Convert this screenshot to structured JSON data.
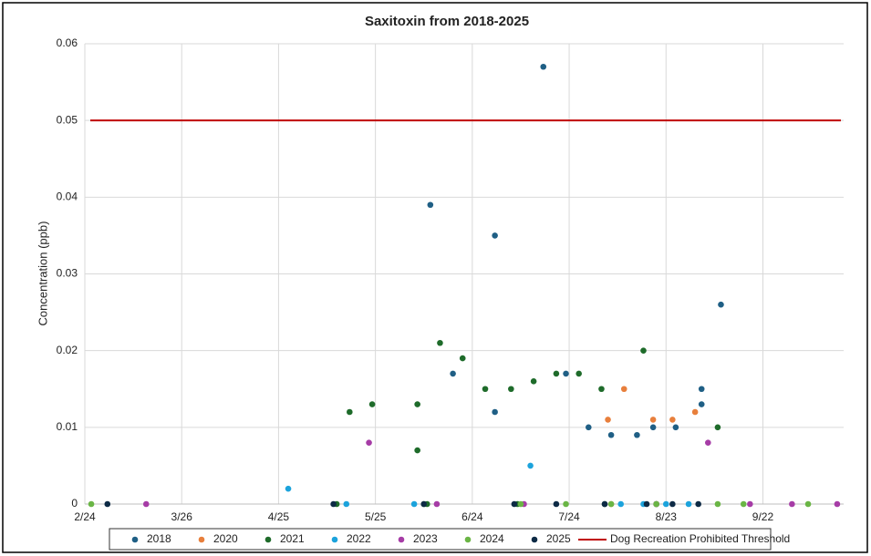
{
  "chart_data": {
    "type": "scatter",
    "title": "Saxitoxin from 2018-2025",
    "ylabel": "Concentration (ppb)",
    "xlim": [
      55,
      290
    ],
    "xticks": [
      {
        "value": 55,
        "label": "2/24"
      },
      {
        "value": 85,
        "label": "3/26"
      },
      {
        "value": 115,
        "label": "4/25"
      },
      {
        "value": 145,
        "label": "5/25"
      },
      {
        "value": 175,
        "label": "6/24"
      },
      {
        "value": 205,
        "label": "7/24"
      },
      {
        "value": 235,
        "label": "8/23"
      },
      {
        "value": 265,
        "label": "9/22"
      }
    ],
    "ylim": [
      0,
      0.06
    ],
    "yticks": [
      0,
      0.01,
      0.02,
      0.03,
      0.04,
      0.05,
      0.06
    ],
    "grid": true,
    "legend": "bottom",
    "series": [
      {
        "name": "2018",
        "color": "#1f5f85",
        "x": [
          162,
          197,
          182,
          252,
          169,
          182,
          204,
          211,
          218,
          226,
          231,
          238,
          246,
          246
        ],
        "values": [
          0.039,
          0.057,
          0.035,
          0.026,
          0.017,
          0.012,
          0.017,
          0.01,
          0.009,
          0.009,
          0.01,
          0.01,
          0.015,
          0.013
        ]
      },
      {
        "name": "2020",
        "color": "#e87f3c",
        "x": [
          217,
          222,
          231,
          237,
          244,
          218,
          232
        ],
        "values": [
          0.011,
          0.015,
          0.011,
          0.011,
          0.012,
          0,
          0
        ]
      },
      {
        "name": "2021",
        "color": "#1e6b2a",
        "x": [
          137,
          144,
          158,
          158,
          165,
          172,
          179,
          187,
          194,
          201,
          208,
          215,
          228,
          251,
          133,
          161,
          189,
          216,
          232
        ],
        "values": [
          0.012,
          0.013,
          0.013,
          0.007,
          0.021,
          0.019,
          0.015,
          0.015,
          0.016,
          0.017,
          0.017,
          0.015,
          0.02,
          0.01,
          0,
          0,
          0,
          0,
          0
        ]
      },
      {
        "name": "2022",
        "color": "#1ca3dc",
        "x": [
          118,
          193,
          136,
          157,
          221,
          228,
          235,
          242
        ],
        "values": [
          0.002,
          0.005,
          0,
          0,
          0,
          0,
          0,
          0
        ]
      },
      {
        "name": "2023",
        "color": "#a63ca6",
        "x": [
          143,
          248,
          74,
          164,
          191,
          232,
          261,
          274,
          288
        ],
        "values": [
          0.008,
          0.008,
          0,
          0,
          0,
          0,
          0,
          0,
          0
        ]
      },
      {
        "name": "2024",
        "color": "#6ab545",
        "x": [
          57,
          160,
          190,
          204,
          218,
          232,
          251,
          259,
          279
        ],
        "values": [
          0,
          0,
          0,
          0,
          0,
          0,
          0,
          0,
          0
        ]
      },
      {
        "name": "2025",
        "color": "#0d2a45",
        "x": [
          62,
          132,
          160,
          188,
          201,
          216,
          229,
          237,
          245
        ],
        "values": [
          0,
          0,
          0,
          0,
          0,
          0,
          0,
          0,
          0
        ]
      }
    ],
    "threshold": {
      "name": "Dog Recreation Prohibited Threshold",
      "value": 0.05,
      "color": "#c00000"
    }
  }
}
